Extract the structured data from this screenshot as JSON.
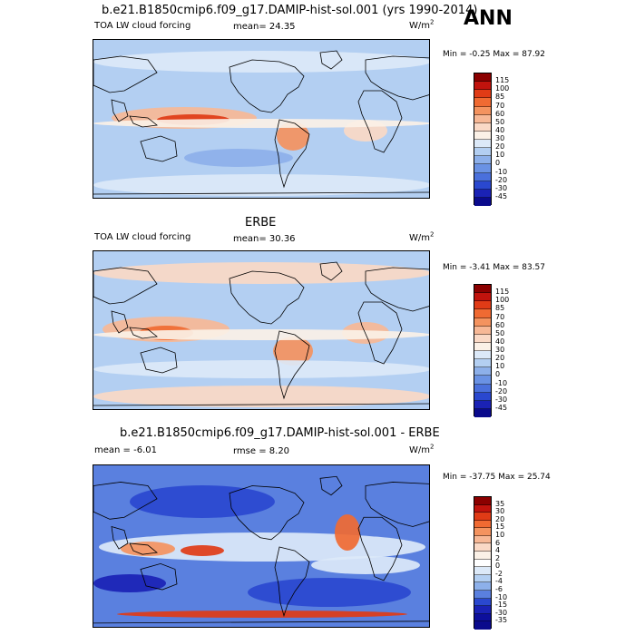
{
  "header": {
    "main_title": "b.e21.B1850cmip6.f09_g17.DAMIP-hist-sol.001 (yrs 1990-2014)",
    "season": "ANN"
  },
  "panels": [
    {
      "title": "",
      "left_label": "TOA LW cloud forcing",
      "center_label": "mean=  24.35",
      "units_base": "W/m",
      "units_exp": "2",
      "minmax": "Min =  -0.25 Max =  87.92",
      "colorbar": {
        "levels": [
          "115",
          "100",
          "85",
          "70",
          "60",
          "50",
          "40",
          "30",
          "20",
          "10",
          "0",
          "-10",
          "-20",
          "-30",
          "-45"
        ],
        "colors": [
          "#8b0000",
          "#c1130d",
          "#e03b16",
          "#f06a32",
          "#f4935f",
          "#f7b896",
          "#fad9c6",
          "#fbf1e7",
          "#dce9f8",
          "#b3cff2",
          "#8db0ea",
          "#6a92e4",
          "#4a70dc",
          "#2a48cf",
          "#1a22b5",
          "#0a0a8c"
        ]
      },
      "style": "model"
    },
    {
      "title": "ERBE",
      "left_label": "TOA LW cloud forcing",
      "center_label": "mean=  30.36",
      "units_base": "W/m",
      "units_exp": "2",
      "minmax": "Min =  -3.41 Max =  83.57",
      "colorbar": {
        "levels": [
          "115",
          "100",
          "85",
          "70",
          "60",
          "50",
          "40",
          "30",
          "20",
          "10",
          "0",
          "-10",
          "-20",
          "-30",
          "-45"
        ],
        "colors": [
          "#8b0000",
          "#c1130d",
          "#e03b16",
          "#f06a32",
          "#f4935f",
          "#f7b896",
          "#fad9c6",
          "#fbf1e7",
          "#dce9f8",
          "#b3cff2",
          "#8db0ea",
          "#6a92e4",
          "#4a70dc",
          "#2a48cf",
          "#1a22b5",
          "#0a0a8c"
        ]
      },
      "style": "obs"
    },
    {
      "title": "b.e21.B1850cmip6.f09_g17.DAMIP-hist-sol.001 - ERBE",
      "left_label": "mean =  -6.01",
      "center_label": "rmse =   8.20",
      "units_base": "W/m",
      "units_exp": "2",
      "minmax": "Min = -37.75 Max =  25.74",
      "colorbar": {
        "levels": [
          "35",
          "30",
          "20",
          "15",
          "10",
          "6",
          "4",
          "2",
          "0",
          "-2",
          "-4",
          "-6",
          "-10",
          "-15",
          "-30",
          "-35"
        ],
        "colors": [
          "#8b0000",
          "#c1130d",
          "#e03b16",
          "#f06a32",
          "#f4935f",
          "#f7b896",
          "#fad9c6",
          "#fbf1e7",
          "#ffffff",
          "#dce9f8",
          "#b3cff2",
          "#8db0ea",
          "#5a80df",
          "#2a48cf",
          "#1a22b5",
          "#0d0f9c",
          "#0a0a8c"
        ]
      },
      "style": "diff"
    }
  ]
}
